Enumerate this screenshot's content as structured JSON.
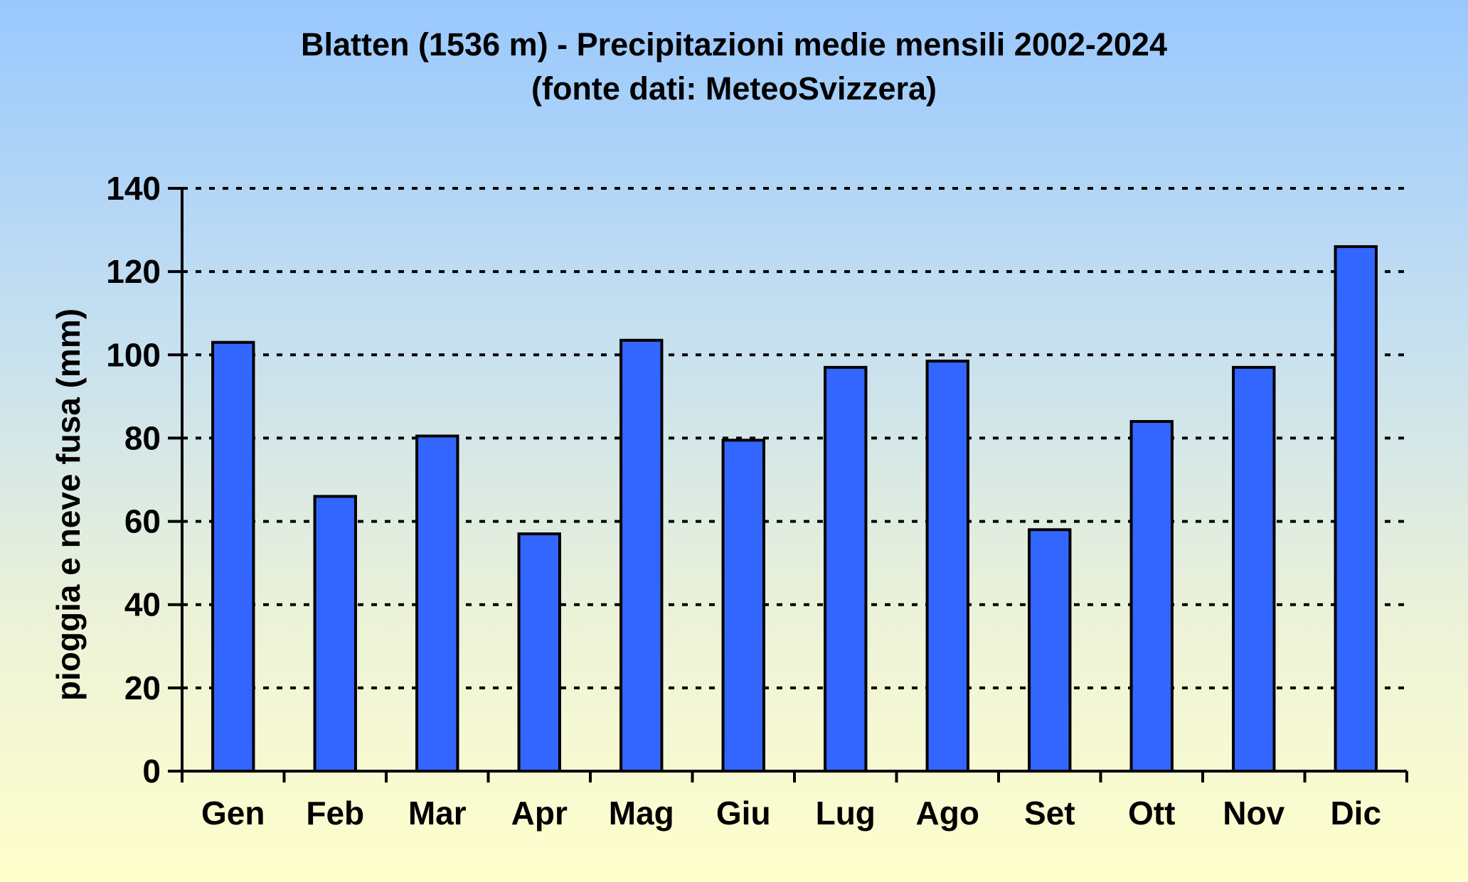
{
  "chart_data": {
    "type": "bar",
    "title": "Blatten (1536 m) - Precipitazioni medie mensili 2002-2024",
    "subtitle": "(fonte dati: MeteoSvizzera)",
    "xlabel": "",
    "ylabel": "pioggia e neve fusa (mm)",
    "categories": [
      "Gen",
      "Feb",
      "Mar",
      "Apr",
      "Mag",
      "Giu",
      "Lug",
      "Ago",
      "Set",
      "Ott",
      "Nov",
      "Dic"
    ],
    "values": [
      103,
      66,
      80.5,
      57,
      103.5,
      79.5,
      97,
      98.5,
      58,
      84,
      97,
      126
    ],
    "ylim": [
      0,
      140
    ],
    "yticks": [
      "0",
      "20",
      "40",
      "60",
      "80",
      "100",
      "120",
      "140"
    ],
    "grid": true,
    "legend": "none",
    "bar_color": "#3366ff",
    "bar_edge_color": "#000000"
  }
}
